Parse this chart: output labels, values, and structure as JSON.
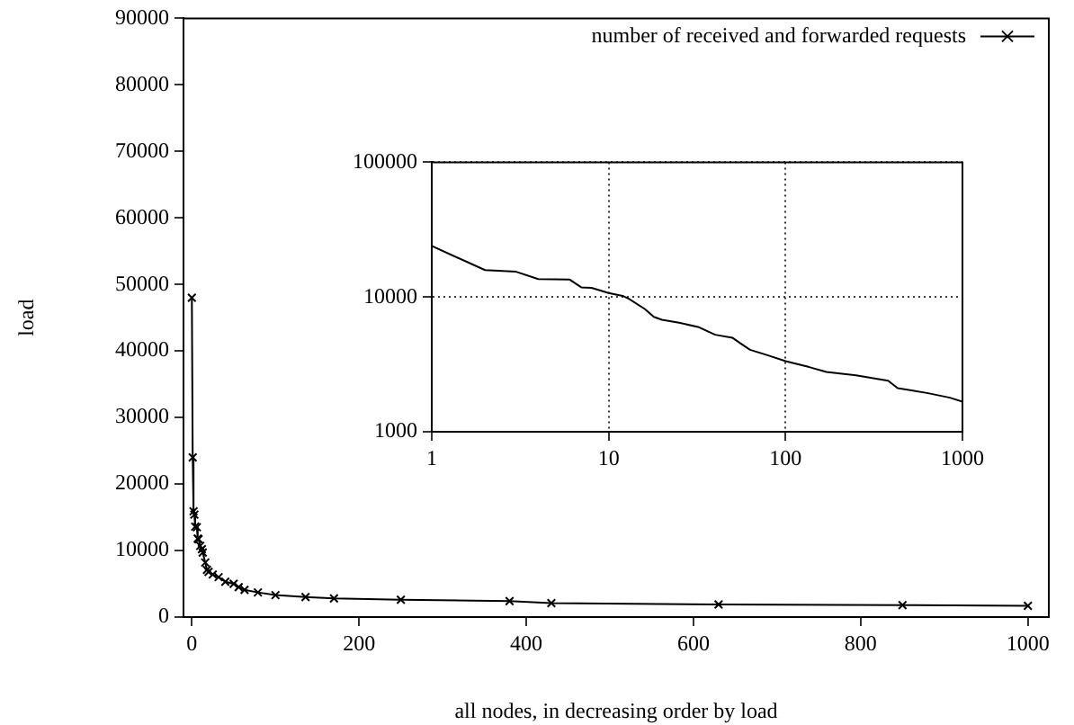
{
  "chart_data": [
    {
      "type": "line",
      "xlabel": "all nodes, in decreasing order by load",
      "ylabel": "load",
      "legend": "top right",
      "marker": "cross",
      "series": [
        {
          "name": "number of received and forwarded requests",
          "color": "#000000",
          "x": [
            0,
            1,
            2,
            3,
            4,
            6,
            7,
            8,
            10,
            12,
            13,
            16,
            18,
            20,
            25,
            32,
            40,
            50,
            56,
            63,
            79,
            100,
            136,
            170,
            250,
            380,
            430,
            630,
            850,
            1000
          ],
          "values": [
            48000,
            24000,
            15900,
            15400,
            13600,
            13500,
            11800,
            11700,
            10700,
            10200,
            9700,
            8200,
            7100,
            6800,
            6400,
            6000,
            5300,
            5000,
            4500,
            4100,
            3700,
            3300,
            3000,
            2800,
            2600,
            2400,
            2100,
            1900,
            1800,
            1700
          ]
        }
      ],
      "xlim": [
        -10,
        1025
      ],
      "ylim": [
        0,
        90000
      ],
      "xticks": [
        0,
        200,
        400,
        600,
        800,
        1000
      ],
      "yticks": [
        0,
        10000,
        20000,
        30000,
        40000,
        50000,
        60000,
        70000,
        80000,
        90000
      ]
    },
    {
      "type": "line",
      "log": "xy",
      "grid": true,
      "series": [
        {
          "color": "#000000",
          "x": [
            1,
            2,
            3,
            4,
            6,
            7,
            8,
            10,
            12,
            13,
            16,
            18,
            20,
            25,
            32,
            40,
            50,
            56,
            63,
            79,
            100,
            136,
            170,
            250,
            380,
            430,
            630,
            850,
            1000
          ],
          "values": [
            23900,
            15850,
            15400,
            13600,
            13500,
            11800,
            11700,
            10700,
            10200,
            9700,
            8150,
            7130,
            6780,
            6440,
            6000,
            5250,
            4990,
            4500,
            4060,
            3700,
            3340,
            3020,
            2780,
            2620,
            2390,
            2110,
            1940,
            1790,
            1670
          ]
        }
      ],
      "xlim": [
        1,
        1000
      ],
      "ylim": [
        1000,
        100000
      ],
      "xticks": [
        1,
        10,
        100,
        1000
      ],
      "yticks": [
        1000,
        10000,
        100000
      ]
    }
  ]
}
